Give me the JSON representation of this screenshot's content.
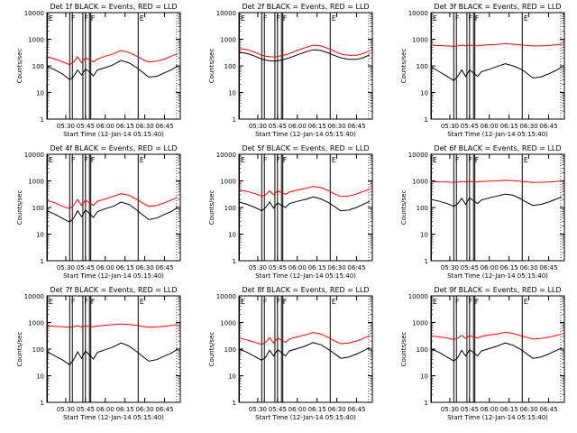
{
  "colors": {
    "events": "#000000",
    "lld": "#ff0000",
    "axes": "#000000",
    "background": "#ffffff"
  },
  "shared": {
    "xlabel": "Start Time (12-Jan-14 05:15:40)",
    "ylabel": "Counts/sec",
    "x_tick_labels": [
      "05:30",
      "05:45",
      "06:00",
      "06:15",
      "06:30",
      "06:45"
    ],
    "y_tick_labels": [
      "1",
      "10",
      "100",
      "1000",
      "10000"
    ],
    "interval_labels": [
      "E",
      "F",
      "F",
      "F",
      "E"
    ]
  },
  "chart_data": [
    {
      "type": "line",
      "title": "Det 1f BLACK = Events, RED = LLD",
      "xlim": [
        "05:15:40",
        "06:57:00"
      ],
      "ylim": [
        1,
        10000
      ],
      "yscale": "log",
      "xscale": "time",
      "x": [
        "05:16",
        "05:22",
        "05:28",
        "05:33",
        "05:36",
        "05:39",
        "05:42",
        "05:45",
        "05:48",
        "05:51",
        "05:54",
        "06:00",
        "06:06",
        "06:12",
        "06:18",
        "06:24",
        "06:27",
        "06:33",
        "06:39",
        "06:45",
        "06:50",
        "06:55"
      ],
      "series": [
        {
          "name": "BLACK = Events",
          "values": [
            95,
            70,
            48,
            30,
            40,
            70,
            45,
            75,
            60,
            42,
            70,
            85,
            110,
            160,
            130,
            85,
            65,
            38,
            40,
            55,
            70,
            100
          ]
        },
        {
          "name": "RED = LLD",
          "values": [
            220,
            180,
            140,
            110,
            140,
            220,
            130,
            200,
            170,
            140,
            180,
            230,
            280,
            380,
            320,
            230,
            190,
            140,
            150,
            180,
            230,
            280
          ]
        }
      ],
      "vlines": [
        "05:16",
        "05:33",
        "05:35",
        "05:43",
        "05:45",
        "05:48",
        "05:49",
        "06:25"
      ],
      "grid": false
    },
    {
      "type": "line",
      "title": "Det 2f BLACK = Events, RED = LLD",
      "xlim": [
        "05:15:40",
        "06:57:00"
      ],
      "ylim": [
        1,
        10000
      ],
      "yscale": "log",
      "xscale": "time",
      "x": [
        "05:16",
        "05:22",
        "05:28",
        "05:33",
        "05:36",
        "05:39",
        "05:42",
        "05:45",
        "05:48",
        "05:51",
        "05:54",
        "06:00",
        "06:06",
        "06:12",
        "06:18",
        "06:24",
        "06:27",
        "06:33",
        "06:39",
        "06:45",
        "06:50",
        "06:55"
      ],
      "series": [
        {
          "name": "BLACK = Events",
          "values": [
            330,
            290,
            230,
            180,
            165,
            155,
            150,
            155,
            165,
            180,
            200,
            260,
            330,
            400,
            380,
            300,
            260,
            200,
            175,
            175,
            200,
            260
          ]
        },
        {
          "name": "RED = LLD",
          "values": [
            450,
            400,
            320,
            250,
            230,
            220,
            215,
            225,
            240,
            260,
            290,
            380,
            480,
            600,
            560,
            440,
            380,
            280,
            250,
            250,
            290,
            370
          ]
        }
      ],
      "vlines": [
        "05:16",
        "05:33",
        "05:35",
        "05:43",
        "05:45",
        "05:48",
        "05:49",
        "06:25"
      ],
      "grid": false
    },
    {
      "type": "line",
      "title": "Det 3f BLACK = Events, RED = LLD",
      "xlim": [
        "05:15:40",
        "06:57:00"
      ],
      "ylim": [
        1,
        10000
      ],
      "yscale": "log",
      "xscale": "time",
      "x": [
        "05:16",
        "05:22",
        "05:28",
        "05:33",
        "05:36",
        "05:39",
        "05:42",
        "05:45",
        "05:48",
        "05:51",
        "05:54",
        "06:00",
        "06:06",
        "06:12",
        "06:18",
        "06:24",
        "06:27",
        "06:33",
        "06:39",
        "06:45",
        "06:50",
        "06:55"
      ],
      "series": [
        {
          "name": "BLACK = Events",
          "values": [
            90,
            60,
            40,
            28,
            40,
            70,
            40,
            70,
            55,
            40,
            60,
            75,
            95,
            120,
            100,
            75,
            60,
            35,
            38,
            50,
            65,
            90
          ]
        },
        {
          "name": "RED = LLD",
          "values": [
            600,
            580,
            560,
            540,
            560,
            600,
            560,
            600,
            580,
            560,
            590,
            620,
            640,
            680,
            650,
            610,
            590,
            560,
            560,
            580,
            610,
            650
          ]
        }
      ],
      "vlines": [
        "05:16",
        "05:33",
        "05:35",
        "05:43",
        "05:45",
        "05:48",
        "05:49",
        "06:25"
      ],
      "grid": false
    },
    {
      "type": "line",
      "title": "Det 4f BLACK = Events, RED = LLD",
      "xlim": [
        "05:15:40",
        "06:57:00"
      ],
      "ylim": [
        1,
        10000
      ],
      "yscale": "log",
      "xscale": "time",
      "x": [
        "05:16",
        "05:22",
        "05:28",
        "05:33",
        "05:36",
        "05:39",
        "05:42",
        "05:45",
        "05:48",
        "05:51",
        "05:54",
        "06:00",
        "06:06",
        "06:12",
        "06:18",
        "06:24",
        "06:27",
        "06:33",
        "06:39",
        "06:45",
        "06:50",
        "06:55"
      ],
      "series": [
        {
          "name": "BLACK = Events",
          "values": [
            75,
            55,
            38,
            28,
            40,
            75,
            45,
            80,
            60,
            42,
            70,
            90,
            110,
            160,
            130,
            80,
            60,
            35,
            40,
            55,
            70,
            100
          ]
        },
        {
          "name": "RED = LLD",
          "values": [
            180,
            150,
            110,
            90,
            120,
            200,
            120,
            190,
            150,
            120,
            170,
            210,
            260,
            330,
            290,
            200,
            160,
            110,
            120,
            150,
            190,
            240
          ]
        }
      ],
      "vlines": [
        "05:16",
        "05:33",
        "05:35",
        "05:43",
        "05:45",
        "05:48",
        "05:49",
        "06:25"
      ],
      "grid": false
    },
    {
      "type": "line",
      "title": "Det 5f BLACK = Events, RED = LLD",
      "xlim": [
        "05:15:40",
        "06:57:00"
      ],
      "ylim": [
        1,
        10000
      ],
      "yscale": "log",
      "xscale": "time",
      "x": [
        "05:16",
        "05:22",
        "05:28",
        "05:33",
        "05:36",
        "05:39",
        "05:42",
        "05:45",
        "05:48",
        "05:51",
        "05:54",
        "06:00",
        "06:06",
        "06:12",
        "06:18",
        "06:24",
        "06:27",
        "06:33",
        "06:39",
        "06:45",
        "06:50",
        "06:55"
      ],
      "series": [
        {
          "name": "BLACK = Events",
          "values": [
            160,
            130,
            100,
            75,
            100,
            160,
            95,
            150,
            120,
            100,
            140,
            170,
            200,
            250,
            210,
            150,
            120,
            75,
            80,
            100,
            130,
            170
          ]
        },
        {
          "name": "RED = LLD",
          "values": [
            450,
            400,
            330,
            270,
            300,
            420,
            300,
            420,
            360,
            310,
            380,
            450,
            520,
            620,
            560,
            420,
            350,
            260,
            270,
            320,
            400,
            480
          ]
        }
      ],
      "vlines": [
        "05:16",
        "05:33",
        "05:35",
        "05:43",
        "05:45",
        "05:48",
        "05:49",
        "06:25"
      ],
      "grid": false
    },
    {
      "type": "line",
      "title": "Det 6f BLACK = Events, RED = LLD",
      "xlim": [
        "05:15:40",
        "06:57:00"
      ],
      "ylim": [
        1,
        10000
      ],
      "yscale": "log",
      "xscale": "time",
      "x": [
        "05:16",
        "05:22",
        "05:28",
        "05:33",
        "05:36",
        "05:39",
        "05:42",
        "05:45",
        "05:48",
        "05:51",
        "05:54",
        "06:00",
        "06:06",
        "06:12",
        "06:18",
        "06:24",
        "06:27",
        "06:33",
        "06:39",
        "06:45",
        "06:50",
        "06:55"
      ],
      "series": [
        {
          "name": "BLACK = Events",
          "values": [
            200,
            170,
            140,
            110,
            140,
            220,
            130,
            230,
            180,
            140,
            190,
            230,
            270,
            320,
            290,
            210,
            170,
            120,
            130,
            160,
            200,
            250
          ]
        },
        {
          "name": "RED = LLD",
          "values": [
            950,
            920,
            900,
            880,
            900,
            950,
            900,
            960,
            930,
            910,
            940,
            980,
            1000,
            1050,
            1020,
            960,
            930,
            880,
            890,
            910,
            950,
            1000
          ]
        }
      ],
      "vlines": [
        "05:16",
        "05:33",
        "05:35",
        "05:43",
        "05:45",
        "05:48",
        "05:49",
        "06:25"
      ],
      "grid": false
    },
    {
      "type": "line",
      "title": "Det 7f BLACK = Events, RED = LLD",
      "xlim": [
        "05:15:40",
        "06:57:00"
      ],
      "ylim": [
        1,
        10000
      ],
      "yscale": "log",
      "xscale": "time",
      "x": [
        "05:16",
        "05:22",
        "05:28",
        "05:33",
        "05:36",
        "05:39",
        "05:42",
        "05:45",
        "05:48",
        "05:51",
        "05:54",
        "06:00",
        "06:06",
        "06:12",
        "06:18",
        "06:24",
        "06:27",
        "06:33",
        "06:39",
        "06:45",
        "06:50",
        "06:55"
      ],
      "series": [
        {
          "name": "BLACK = Events",
          "values": [
            80,
            55,
            38,
            26,
            40,
            80,
            45,
            85,
            60,
            42,
            75,
            95,
            120,
            170,
            130,
            80,
            60,
            35,
            40,
            55,
            70,
            100
          ]
        },
        {
          "name": "RED = LLD",
          "values": [
            750,
            720,
            690,
            660,
            700,
            760,
            690,
            760,
            720,
            690,
            740,
            790,
            830,
            880,
            840,
            770,
            730,
            660,
            680,
            720,
            770,
            830
          ]
        }
      ],
      "vlines": [
        "05:16",
        "05:33",
        "05:35",
        "05:43",
        "05:45",
        "05:48",
        "05:49",
        "06:25"
      ],
      "grid": false
    },
    {
      "type": "line",
      "title": "Det 8f BLACK = Events, RED = LLD",
      "xlim": [
        "05:15:40",
        "06:57:00"
      ],
      "ylim": [
        1,
        10000
      ],
      "yscale": "log",
      "xscale": "time",
      "x": [
        "05:16",
        "05:22",
        "05:28",
        "05:33",
        "05:36",
        "05:39",
        "05:42",
        "05:45",
        "05:48",
        "05:51",
        "05:54",
        "06:00",
        "06:06",
        "06:12",
        "06:18",
        "06:24",
        "06:27",
        "06:33",
        "06:39",
        "06:45",
        "06:50",
        "06:55"
      ],
      "series": [
        {
          "name": "BLACK = Events",
          "values": [
            100,
            75,
            52,
            38,
            50,
            90,
            55,
            95,
            75,
            55,
            85,
            105,
            130,
            175,
            145,
            95,
            75,
            45,
            50,
            65,
            85,
            115
          ]
        },
        {
          "name": "RED = LLD",
          "values": [
            260,
            220,
            180,
            150,
            180,
            270,
            170,
            260,
            220,
            180,
            240,
            290,
            340,
            420,
            370,
            270,
            220,
            160,
            170,
            200,
            250,
            320
          ]
        }
      ],
      "vlines": [
        "05:16",
        "05:33",
        "05:35",
        "05:43",
        "05:45",
        "05:48",
        "05:49",
        "06:25"
      ],
      "grid": false
    },
    {
      "type": "line",
      "title": "Det 9f BLACK = Events, RED = LLD",
      "xlim": [
        "05:15:40",
        "06:57:00"
      ],
      "ylim": [
        1,
        10000
      ],
      "yscale": "log",
      "xscale": "time",
      "x": [
        "05:16",
        "05:22",
        "05:28",
        "05:33",
        "05:36",
        "05:39",
        "05:42",
        "05:45",
        "05:48",
        "05:51",
        "05:54",
        "06:00",
        "06:06",
        "06:12",
        "06:18",
        "06:24",
        "06:27",
        "06:33",
        "06:39",
        "06:45",
        "06:50",
        "06:55"
      ],
      "series": [
        {
          "name": "BLACK = Events",
          "values": [
            100,
            75,
            50,
            36,
            48,
            90,
            55,
            95,
            75,
            55,
            85,
            105,
            130,
            170,
            140,
            95,
            75,
            45,
            50,
            65,
            85,
            110
          ]
        },
        {
          "name": "RED = LLD",
          "values": [
            310,
            290,
            260,
            230,
            260,
            330,
            250,
            320,
            290,
            260,
            300,
            340,
            370,
            430,
            390,
            320,
            290,
            240,
            250,
            280,
            320,
            370
          ]
        }
      ],
      "vlines": [
        "05:16",
        "05:33",
        "05:35",
        "05:43",
        "05:45",
        "05:48",
        "05:49",
        "06:25"
      ],
      "grid": false
    }
  ]
}
